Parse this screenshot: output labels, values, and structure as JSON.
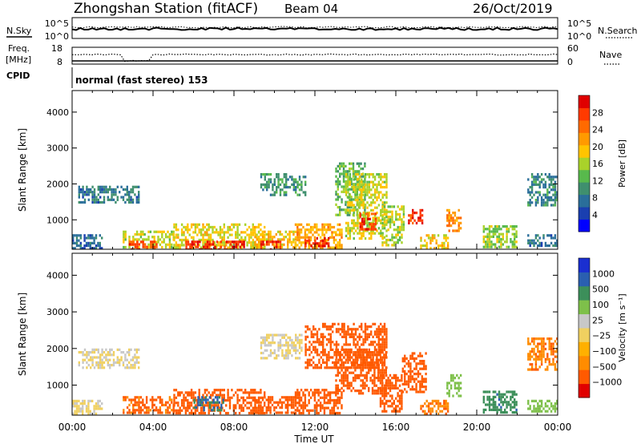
{
  "header": {
    "station": "Zhongshan Station (fitACF)",
    "beam": "Beam 04",
    "date": "26/Oct/2019"
  },
  "top_panel": {
    "left_label": "N.Sky",
    "left_ticks": [
      "10^5",
      "10^0"
    ],
    "right_label": "N.Search",
    "right_ticks": [
      "10^5",
      "10^0"
    ]
  },
  "freq_panel": {
    "left_label_1": "Freq.",
    "left_label_2": "[MHz]",
    "left_ticks": [
      "18",
      "8"
    ],
    "right_label": "Nave",
    "right_ticks": [
      "60",
      "0"
    ]
  },
  "cpid": {
    "label": "CPID",
    "mode": "normal (fast stereo) 153"
  },
  "colors": {
    "power_scale": [
      "#0000ff",
      "#1a3fb0",
      "#2a6e9a",
      "#3f8f6e",
      "#58b94c",
      "#a9d22a",
      "#ffc400",
      "#ff9a00",
      "#ff6a00",
      "#ff3a00",
      "#e00000"
    ],
    "velocity_scale": [
      "#e00000",
      "#ff5a00",
      "#ff8c00",
      "#ffb000",
      "#f0d060",
      "#c8c8c8",
      "#7ec04a",
      "#3c8f5a",
      "#2a5fb0",
      "#1a2fd0"
    ]
  },
  "chart_data": [
    {
      "type": "heatmap",
      "title": "",
      "xlabel": "Time UT",
      "ylabel": "Slant Range [km]",
      "x_ticks": [
        "00:00",
        "04:00",
        "08:00",
        "12:00",
        "16:00",
        "20:00",
        "00:00"
      ],
      "xlim_hours": [
        0,
        24
      ],
      "y_ticks": [
        1000,
        2000,
        3000,
        4000
      ],
      "ylim": [
        180,
        4600
      ],
      "colorbar": {
        "label": "Power [dB]",
        "ticks": [
          4,
          8,
          12,
          16,
          20,
          24,
          28
        ],
        "range": [
          0,
          30
        ]
      },
      "regions": [
        {
          "t0": 0.3,
          "t1": 3.3,
          "r0": 1500,
          "r1": 1950,
          "value": 7
        },
        {
          "t0": 0.0,
          "t1": 1.5,
          "r0": 200,
          "r1": 600,
          "value": 6
        },
        {
          "t0": 2.5,
          "t1": 5.0,
          "r0": 220,
          "r1": 700,
          "value": 16
        },
        {
          "t0": 2.8,
          "t1": 4.2,
          "r0": 200,
          "r1": 420,
          "value": 26
        },
        {
          "t0": 5.0,
          "t1": 9.5,
          "r0": 200,
          "r1": 900,
          "value": 17
        },
        {
          "t0": 5.6,
          "t1": 8.5,
          "r0": 200,
          "r1": 420,
          "value": 28
        },
        {
          "t0": 9.0,
          "t1": 11.0,
          "r0": 220,
          "r1": 700,
          "value": 18
        },
        {
          "t0": 9.3,
          "t1": 10.3,
          "r0": 200,
          "r1": 420,
          "value": 27
        },
        {
          "t0": 9.3,
          "t1": 11.5,
          "r0": 1700,
          "r1": 2300,
          "value": 9
        },
        {
          "t0": 11.0,
          "t1": 13.3,
          "r0": 200,
          "r1": 900,
          "value": 20
        },
        {
          "t0": 11.4,
          "t1": 12.7,
          "r0": 250,
          "r1": 520,
          "value": 29
        },
        {
          "t0": 13.0,
          "t1": 14.5,
          "r0": 1100,
          "r1": 2600,
          "value": 12
        },
        {
          "t0": 13.5,
          "t1": 15.5,
          "r0": 500,
          "r1": 2300,
          "value": 16
        },
        {
          "t0": 14.2,
          "t1": 15.0,
          "r0": 700,
          "r1": 1200,
          "value": 27
        },
        {
          "t0": 15.3,
          "t1": 16.4,
          "r0": 300,
          "r1": 1400,
          "value": 15
        },
        {
          "t0": 16.6,
          "t1": 17.3,
          "r0": 900,
          "r1": 1300,
          "value": 28
        },
        {
          "t0": 17.2,
          "t1": 18.6,
          "r0": 220,
          "r1": 600,
          "value": 18
        },
        {
          "t0": 18.5,
          "t1": 19.2,
          "r0": 700,
          "r1": 1300,
          "value": 22
        },
        {
          "t0": 20.3,
          "t1": 22.0,
          "r0": 220,
          "r1": 850,
          "value": 14
        },
        {
          "t0": 22.5,
          "t1": 24.0,
          "r0": 250,
          "r1": 600,
          "value": 6
        },
        {
          "t0": 22.5,
          "t1": 24.0,
          "r0": 1400,
          "r1": 2300,
          "value": 8
        }
      ]
    },
    {
      "type": "heatmap",
      "title": "",
      "xlabel": "Time UT",
      "ylabel": "Slant Range [km]",
      "x_ticks": [
        "00:00",
        "04:00",
        "08:00",
        "12:00",
        "16:00",
        "20:00",
        "00:00"
      ],
      "xlim_hours": [
        0,
        24
      ],
      "y_ticks": [
        1000,
        2000,
        3000,
        4000
      ],
      "ylim": [
        180,
        4600
      ],
      "colorbar": {
        "label": "Velocity [m s⁻¹]",
        "ticks": [
          "1000",
          "500",
          "100",
          "25",
          "−25",
          "−100",
          "−500",
          "−1000"
        ]
      },
      "regions": [
        {
          "t0": 0.3,
          "t1": 3.3,
          "r0": 1500,
          "r1": 2000,
          "value": 0
        },
        {
          "t0": 0.0,
          "t1": 1.5,
          "r0": 200,
          "r1": 600,
          "value": 0
        },
        {
          "t0": 2.5,
          "t1": 5.0,
          "r0": 220,
          "r1": 700,
          "value": -120
        },
        {
          "t0": 5.0,
          "t1": 9.5,
          "r0": 200,
          "r1": 900,
          "value": -150
        },
        {
          "t0": 6.0,
          "t1": 7.5,
          "r0": 300,
          "r1": 700,
          "value": 600
        },
        {
          "t0": 9.0,
          "t1": 11.0,
          "r0": 220,
          "r1": 700,
          "value": -160
        },
        {
          "t0": 9.3,
          "t1": 11.3,
          "r0": 1700,
          "r1": 2400,
          "value": 0
        },
        {
          "t0": 11.0,
          "t1": 13.3,
          "r0": 200,
          "r1": 900,
          "value": -170
        },
        {
          "t0": 11.5,
          "t1": 15.5,
          "r0": 1500,
          "r1": 2700,
          "value": -200
        },
        {
          "t0": 13.0,
          "t1": 15.5,
          "r0": 800,
          "r1": 2000,
          "value": -160
        },
        {
          "t0": 15.2,
          "t1": 16.3,
          "r0": 300,
          "r1": 1300,
          "value": -150
        },
        {
          "t0": 16.3,
          "t1": 17.5,
          "r0": 800,
          "r1": 1900,
          "value": -140
        },
        {
          "t0": 17.2,
          "t1": 18.6,
          "r0": 220,
          "r1": 600,
          "value": -90
        },
        {
          "t0": 18.5,
          "t1": 19.2,
          "r0": 700,
          "r1": 1300,
          "value": 60
        },
        {
          "t0": 20.3,
          "t1": 22.0,
          "r0": 220,
          "r1": 850,
          "value": 400
        },
        {
          "t0": 22.5,
          "t1": 24.0,
          "r0": 250,
          "r1": 600,
          "value": 60
        },
        {
          "t0": 22.5,
          "t1": 24.0,
          "r0": 1400,
          "r1": 2300,
          "value": -90
        }
      ]
    }
  ]
}
